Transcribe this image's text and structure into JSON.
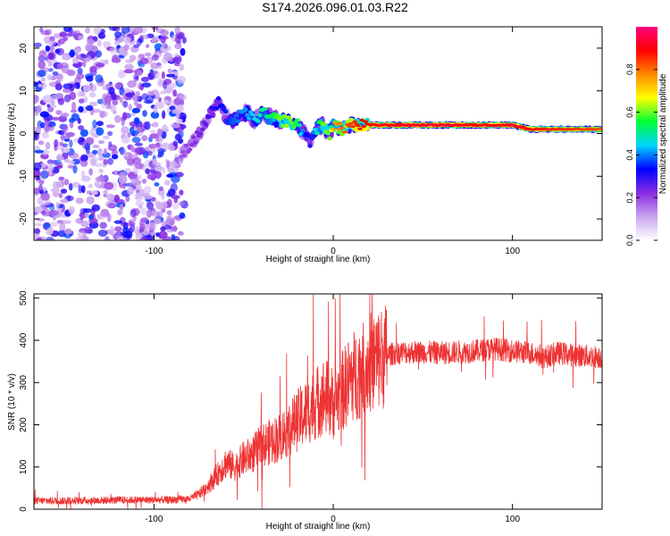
{
  "page_title": "S174.2026.096.01.03.R22",
  "colors": {
    "spectrum_dot": "#8a2be2",
    "snr_line": "#ee3333",
    "axis": "#000000"
  },
  "chart_data": [
    {
      "type": "heatmap",
      "title": "S174.2026.096.01.03.R22",
      "xlabel": "Height of straight line (km)",
      "ylabel": "Frequency (Hz)",
      "xlim": [
        -167,
        150
      ],
      "ylim": [
        -25,
        25
      ],
      "x_ticks": [
        "-100",
        "0",
        "100"
      ],
      "x_tick_values": [
        -100,
        0,
        100
      ],
      "y_ticks": [
        "-20",
        "-10",
        "0",
        "10",
        "20"
      ],
      "y_tick_values": [
        -20,
        -10,
        0,
        10,
        20
      ],
      "colorbar": {
        "label": "Normalized spectral amplitude",
        "range": [
          0,
          1
        ],
        "ticks": [
          "0.0",
          "0.2",
          "0.4",
          "0.6",
          "0.8"
        ],
        "tick_values": [
          0.0,
          0.2,
          0.4,
          0.6,
          0.8
        ],
        "colors": [
          "#ffffff",
          "#c9a5f0",
          "#8a2be2",
          "#0000ff",
          "#00d5ff",
          "#00ff33",
          "#ffff00",
          "#ff8800",
          "#ff0000",
          "#ff0080"
        ]
      },
      "ridge": {
        "x": [
          -85,
          -78,
          -72,
          -68,
          -64,
          -60,
          -56,
          -52,
          -48,
          -44,
          -40,
          -36,
          -30,
          -25,
          -20,
          -16,
          -13,
          -10,
          -6,
          -2,
          0,
          5,
          10,
          20,
          40,
          60,
          80,
          100,
          110,
          120,
          130,
          150
        ],
        "freq": [
          -5,
          -2,
          2,
          5,
          7,
          4,
          3,
          4,
          5,
          3,
          5,
          4,
          3,
          3,
          2,
          0,
          -2,
          1,
          2,
          0,
          2,
          1,
          2,
          2,
          2,
          2,
          2,
          2,
          1,
          1,
          1,
          1
        ],
        "amplitude": [
          0.18,
          0.22,
          0.25,
          0.3,
          0.32,
          0.35,
          0.38,
          0.4,
          0.42,
          0.45,
          0.5,
          0.52,
          0.6,
          0.62,
          0.55,
          0.35,
          0.3,
          0.45,
          0.6,
          0.6,
          0.75,
          0.8,
          0.85,
          0.9,
          0.92,
          0.93,
          0.9,
          0.92,
          0.88,
          0.86,
          0.85,
          0.82
        ]
      }
    },
    {
      "type": "line",
      "xlabel": "Height of straight line (km)",
      "ylabel": "SNR (10 * v/v)",
      "xlim": [
        -167,
        150
      ],
      "ylim": [
        0,
        510
      ],
      "x_ticks": [
        "-100",
        "0",
        "100"
      ],
      "x_tick_values": [
        -100,
        0,
        100
      ],
      "y_ticks": [
        "0",
        "100",
        "200",
        "300",
        "400",
        "500"
      ],
      "y_tick_values": [
        0,
        100,
        200,
        300,
        400,
        500
      ],
      "series": [
        {
          "name": "SNR",
          "x": [
            -167,
            -150,
            -130,
            -110,
            -90,
            -80,
            -75,
            -70,
            -65,
            -60,
            -55,
            -50,
            -45,
            -40,
            -35,
            -30,
            -25,
            -20,
            -15,
            -10,
            -5,
            0,
            5,
            10,
            15,
            20,
            25,
            30,
            35,
            40,
            50,
            60,
            70,
            80,
            90,
            100,
            110,
            118,
            125,
            135,
            150
          ],
          "y": [
            20,
            20,
            21,
            22,
            22,
            25,
            35,
            55,
            80,
            110,
            100,
            120,
            130,
            150,
            160,
            170,
            190,
            210,
            230,
            250,
            270,
            250,
            280,
            310,
            330,
            345,
            355,
            365,
            370,
            372,
            372,
            370,
            372,
            375,
            380,
            375,
            370,
            360,
            370,
            365,
            360
          ]
        }
      ]
    }
  ]
}
